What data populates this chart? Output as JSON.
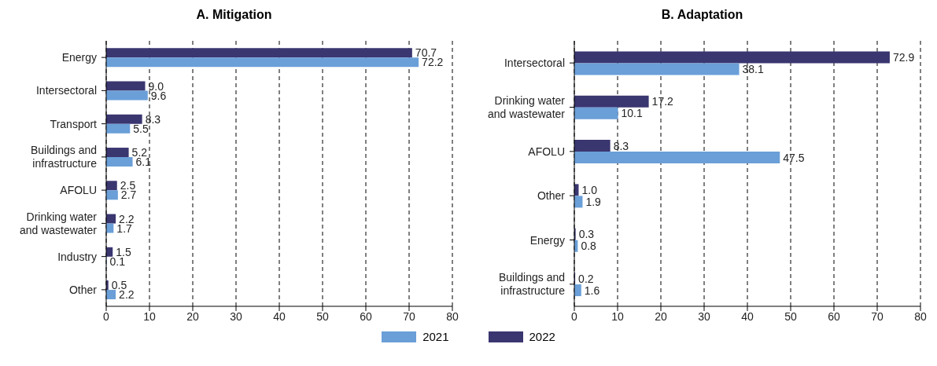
{
  "chart_data": [
    {
      "type": "bar",
      "orientation": "horizontal",
      "title": "A. Mitigation",
      "categories": [
        "Energy",
        "Intersectoral",
        "Transport",
        "Buildings and infrastructure",
        "AFOLU",
        "Drinking water and wastewater",
        "Industry",
        "Other"
      ],
      "series": [
        {
          "name": "2021",
          "color": "#6a9fd8",
          "values": [
            72.2,
            9.6,
            5.5,
            6.1,
            2.7,
            1.7,
            0.1,
            2.2
          ],
          "value_labels": [
            "72.2",
            "9.6",
            "5.5",
            "6.1",
            "2.7",
            "1.7",
            "0.1",
            "2.2"
          ]
        },
        {
          "name": "2022",
          "color": "#3a3670",
          "values": [
            70.7,
            9.0,
            8.3,
            5.2,
            2.5,
            2.2,
            1.5,
            0.5
          ],
          "value_labels": [
            "70.7",
            "9.0",
            "8.3",
            "5.2",
            "2.5",
            "2.2",
            "1.5",
            "0.5"
          ]
        }
      ],
      "xlim": [
        0,
        80
      ],
      "xticks": [
        0,
        10,
        20,
        30,
        40,
        50,
        60,
        70,
        80
      ],
      "grid": "x",
      "legend": "bottom"
    },
    {
      "type": "bar",
      "orientation": "horizontal",
      "title": "B. Adaptation",
      "categories": [
        "Intersectoral",
        "Drinking water and wastewater",
        "AFOLU",
        "Other",
        "Energy",
        "Buildings and infrastructure"
      ],
      "series": [
        {
          "color": "#6a9fd8",
          "values": [
            38.1,
            10.1,
            47.5,
            1.9,
            0.8,
            1.6
          ],
          "value_labels": [
            "38.1",
            "10.1",
            "47.5",
            "1.9",
            "0.8",
            "1.6"
          ]
        },
        {
          "color": "#3a3670",
          "values": [
            72.9,
            17.2,
            8.3,
            1.0,
            0.3,
            0.2
          ],
          "value_labels": [
            "72.9",
            "17.2",
            "8.3",
            "1.0",
            "0.3",
            "0.2"
          ]
        }
      ],
      "xlim": [
        0,
        80
      ],
      "xticks": [
        0,
        10,
        20,
        30,
        40,
        50,
        60,
        70,
        80
      ],
      "grid": "x"
    }
  ]
}
